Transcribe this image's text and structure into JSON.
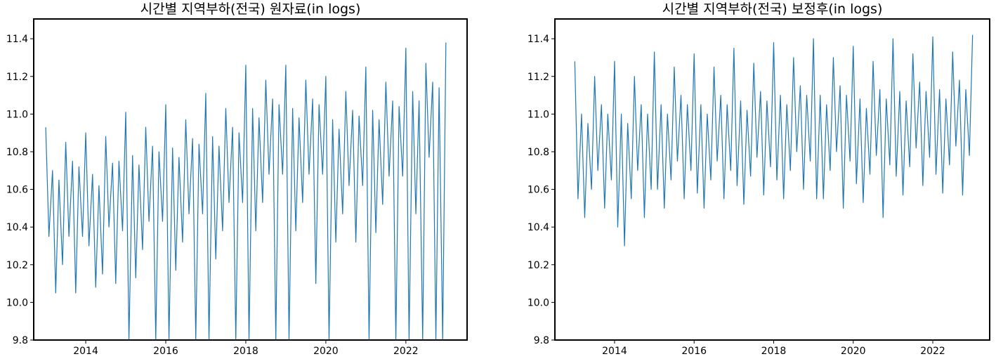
{
  "chart_data": [
    {
      "type": "line",
      "title": "시간별 지역부하(전국) 원자료(in logs)",
      "xlim": [
        2012.7,
        2023.53
      ],
      "ylim": [
        9.8,
        11.505
      ],
      "xticks": [
        2014,
        2016,
        2018,
        2020,
        2022
      ],
      "yticks": [
        9.8,
        {
          "value": 10,
          "label": "10.0"
        },
        10.2,
        10.4,
        10.6,
        10.8,
        {
          "value": 11,
          "label": "11.0"
        },
        11.2,
        11.4
      ],
      "x": [
        2013.0,
        2013.08,
        2013.17,
        2013.25,
        2013.33,
        2013.42,
        2013.5,
        2013.58,
        2013.67,
        2013.75,
        2013.83,
        2013.92,
        2014.0,
        2014.08,
        2014.17,
        2014.25,
        2014.33,
        2014.42,
        2014.5,
        2014.58,
        2014.67,
        2014.75,
        2014.83,
        2014.92,
        2015.0,
        2015.08,
        2015.17,
        2015.25,
        2015.33,
        2015.42,
        2015.5,
        2015.58,
        2015.67,
        2015.75,
        2015.83,
        2015.92,
        2016.0,
        2016.08,
        2016.17,
        2016.25,
        2016.33,
        2016.42,
        2016.5,
        2016.58,
        2016.67,
        2016.75,
        2016.83,
        2016.92,
        2017.0,
        2017.08,
        2017.17,
        2017.25,
        2017.33,
        2017.42,
        2017.5,
        2017.58,
        2017.67,
        2017.75,
        2017.83,
        2017.92,
        2018.0,
        2018.08,
        2018.17,
        2018.25,
        2018.33,
        2018.42,
        2018.5,
        2018.58,
        2018.67,
        2018.75,
        2018.83,
        2018.92,
        2019.0,
        2019.08,
        2019.17,
        2019.25,
        2019.33,
        2019.42,
        2019.5,
        2019.58,
        2019.67,
        2019.75,
        2019.83,
        2019.92,
        2020.0,
        2020.08,
        2020.17,
        2020.25,
        2020.33,
        2020.42,
        2020.5,
        2020.58,
        2020.67,
        2020.75,
        2020.83,
        2020.92,
        2021.0,
        2021.08,
        2021.17,
        2021.25,
        2021.33,
        2021.42,
        2021.5,
        2021.58,
        2021.67,
        2021.75,
        2021.83,
        2021.92,
        2022.0,
        2022.08,
        2022.17,
        2022.25,
        2022.33,
        2022.42,
        2022.5,
        2022.58,
        2022.67,
        2022.75,
        2022.83,
        2022.92,
        2023.0
      ],
      "series": [
        {
          "color": "#1f77b4",
          "values": [
            10.93,
            10.35,
            10.7,
            10.05,
            10.65,
            10.2,
            10.85,
            10.35,
            10.75,
            10.05,
            10.72,
            10.35,
            10.9,
            10.3,
            10.68,
            10.08,
            10.62,
            10.15,
            10.88,
            10.4,
            10.74,
            10.1,
            10.75,
            10.38,
            11.01,
            9.8,
            10.78,
            10.13,
            10.73,
            10.28,
            10.93,
            10.43,
            10.83,
            9.8,
            10.8,
            10.43,
            11.05,
            9.8,
            10.82,
            10.17,
            10.77,
            10.32,
            10.97,
            10.47,
            10.87,
            9.8,
            10.84,
            10.47,
            11.11,
            9.8,
            10.88,
            10.23,
            10.83,
            10.38,
            11.03,
            10.53,
            10.93,
            9.8,
            10.9,
            10.53,
            11.26,
            9.8,
            11.03,
            10.38,
            10.98,
            10.53,
            11.18,
            10.68,
            11.08,
            9.8,
            11.05,
            10.68,
            11.26,
            9.8,
            11.03,
            10.38,
            10.98,
            10.53,
            11.18,
            10.68,
            11.08,
            10.1,
            11.05,
            10.68,
            11.2,
            9.8,
            10.97,
            10.32,
            10.92,
            10.47,
            11.12,
            10.62,
            11.02,
            10.32,
            10.99,
            10.62,
            11.25,
            9.8,
            11.02,
            10.37,
            10.97,
            10.52,
            11.17,
            10.67,
            11.07,
            9.8,
            11.04,
            10.67,
            11.35,
            9.8,
            11.12,
            10.47,
            11.07,
            9.8,
            11.27,
            10.77,
            11.17,
            9.8,
            11.14,
            9.8,
            11.38
          ]
        }
      ]
    },
    {
      "type": "line",
      "title": "시간별 지역부하(전국) 보정후(in logs)",
      "xlim": [
        2012.5,
        2023.43
      ],
      "ylim": [
        9.8,
        11.505
      ],
      "xticks": [
        2014,
        2016,
        2018,
        2020,
        2022
      ],
      "yticks": [
        9.8,
        {
          "value": 10,
          "label": "10.0"
        },
        10.2,
        10.4,
        10.6,
        10.8,
        {
          "value": 11,
          "label": "11.0"
        },
        11.2,
        11.4
      ],
      "x": [
        2013.0,
        2013.08,
        2013.17,
        2013.25,
        2013.33,
        2013.42,
        2013.5,
        2013.58,
        2013.67,
        2013.75,
        2013.83,
        2013.92,
        2014.0,
        2014.08,
        2014.17,
        2014.25,
        2014.33,
        2014.42,
        2014.5,
        2014.58,
        2014.67,
        2014.75,
        2014.83,
        2014.92,
        2015.0,
        2015.08,
        2015.17,
        2015.25,
        2015.33,
        2015.42,
        2015.5,
        2015.58,
        2015.67,
        2015.75,
        2015.83,
        2015.92,
        2016.0,
        2016.08,
        2016.17,
        2016.25,
        2016.33,
        2016.42,
        2016.5,
        2016.58,
        2016.67,
        2016.75,
        2016.83,
        2016.92,
        2017.0,
        2017.08,
        2017.17,
        2017.25,
        2017.33,
        2017.42,
        2017.5,
        2017.58,
        2017.67,
        2017.75,
        2017.83,
        2017.92,
        2018.0,
        2018.08,
        2018.17,
        2018.25,
        2018.33,
        2018.42,
        2018.5,
        2018.58,
        2018.67,
        2018.75,
        2018.83,
        2018.92,
        2019.0,
        2019.08,
        2019.17,
        2019.25,
        2019.33,
        2019.42,
        2019.5,
        2019.58,
        2019.67,
        2019.75,
        2019.83,
        2019.92,
        2020.0,
        2020.08,
        2020.17,
        2020.25,
        2020.33,
        2020.42,
        2020.5,
        2020.58,
        2020.67,
        2020.75,
        2020.83,
        2020.92,
        2021.0,
        2021.08,
        2021.17,
        2021.25,
        2021.33,
        2021.42,
        2021.5,
        2021.58,
        2021.67,
        2021.75,
        2021.83,
        2021.92,
        2022.0,
        2022.08,
        2022.17,
        2022.25,
        2022.33,
        2022.42,
        2022.5,
        2022.58,
        2022.67,
        2022.75,
        2022.83,
        2022.92,
        2023.0
      ],
      "series": [
        {
          "color": "#1f77b4",
          "values": [
            11.28,
            10.55,
            11.0,
            10.45,
            10.95,
            10.6,
            11.2,
            10.7,
            11.05,
            10.5,
            11.0,
            10.65,
            11.28,
            10.4,
            11.0,
            10.3,
            10.95,
            10.55,
            11.2,
            10.7,
            11.05,
            10.45,
            11.0,
            10.6,
            11.33,
            10.6,
            11.05,
            10.5,
            11.0,
            10.65,
            11.25,
            10.75,
            11.1,
            10.55,
            11.05,
            10.7,
            11.32,
            10.58,
            11.05,
            10.5,
            11.0,
            10.65,
            11.25,
            10.75,
            11.1,
            10.55,
            11.05,
            10.7,
            11.35,
            10.62,
            11.07,
            10.52,
            11.02,
            10.67,
            11.27,
            10.77,
            11.12,
            10.57,
            11.07,
            10.72,
            11.38,
            10.65,
            11.1,
            10.55,
            11.05,
            10.7,
            11.3,
            10.8,
            11.15,
            10.6,
            11.1,
            10.75,
            11.4,
            10.55,
            11.1,
            10.55,
            11.05,
            10.7,
            11.3,
            10.8,
            11.15,
            10.5,
            11.1,
            10.75,
            11.36,
            10.63,
            11.08,
            10.53,
            11.03,
            10.68,
            11.28,
            10.78,
            11.13,
            10.45,
            11.08,
            10.73,
            11.4,
            10.67,
            11.12,
            10.57,
            11.07,
            10.72,
            11.32,
            10.82,
            11.17,
            10.62,
            11.12,
            10.77,
            11.41,
            10.68,
            11.13,
            10.58,
            11.08,
            10.73,
            11.33,
            10.83,
            11.18,
            10.57,
            11.13,
            10.78,
            11.42
          ]
        }
      ]
    }
  ]
}
